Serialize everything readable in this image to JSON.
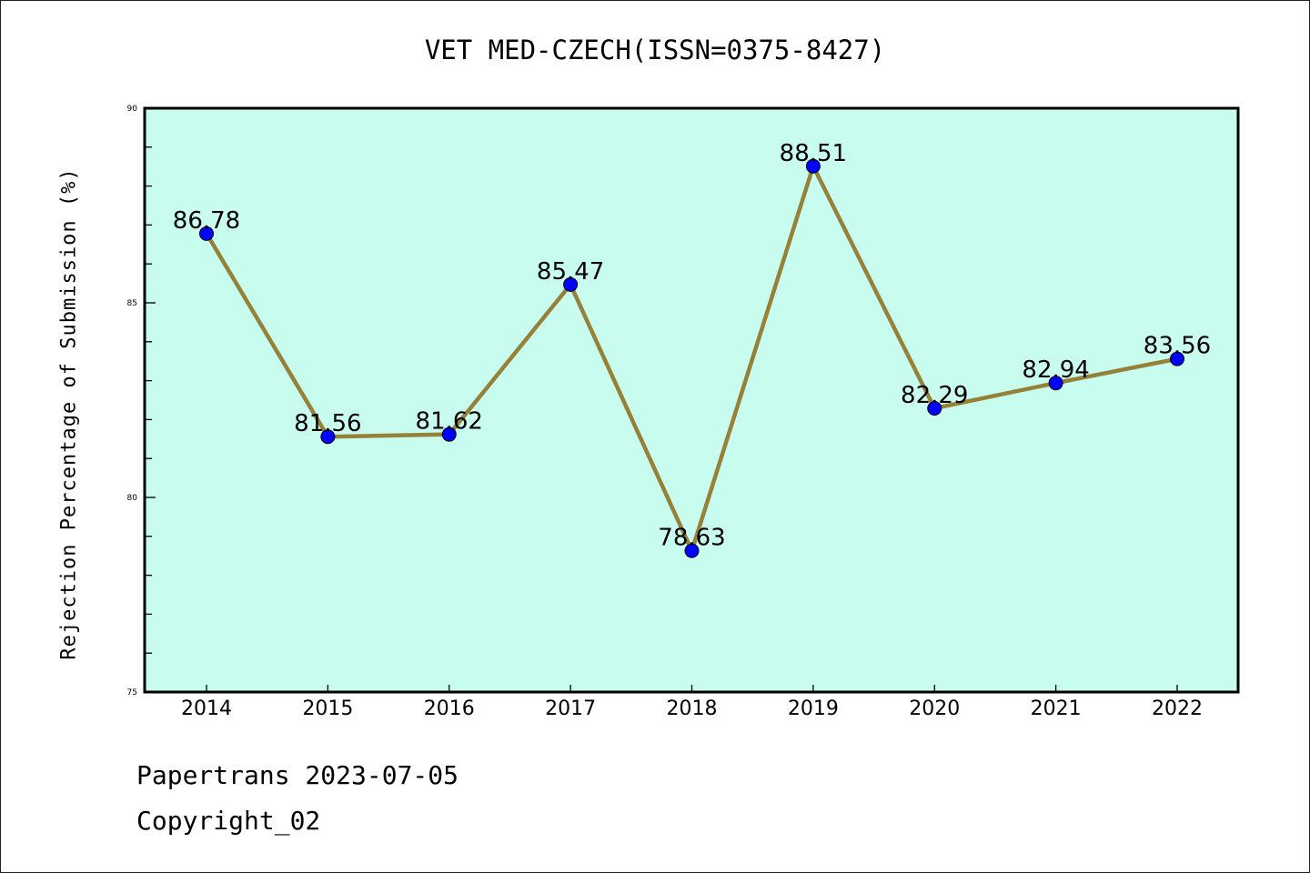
{
  "chart_data": {
    "type": "line",
    "title": "VET MED-CZECH(ISSN=0375-8427)",
    "xlabel": "",
    "ylabel": "Rejection Percentage of Submission (%)",
    "x": [
      "2014",
      "2015",
      "2016",
      "2017",
      "2018",
      "2019",
      "2020",
      "2021",
      "2022"
    ],
    "series": [
      {
        "name": "Rejection Percentage",
        "values": [
          86.78,
          81.56,
          81.62,
          85.47,
          78.63,
          88.51,
          82.29,
          82.94,
          83.56
        ]
      }
    ],
    "data_labels": [
      "86.78",
      "81.56",
      "81.62",
      "85.47",
      "78.63",
      "88.51",
      "82.29",
      "82.94",
      "83.56"
    ],
    "ylim": [
      75,
      90
    ],
    "yticks": [
      "75",
      "80",
      "85",
      "90"
    ],
    "grid": false,
    "colors": {
      "background": "#c8fcee",
      "line": "#958238",
      "marker": "#0000ff"
    }
  },
  "footer": {
    "line1": "Papertrans 2023-07-05",
    "line2": "Copyright_02"
  }
}
